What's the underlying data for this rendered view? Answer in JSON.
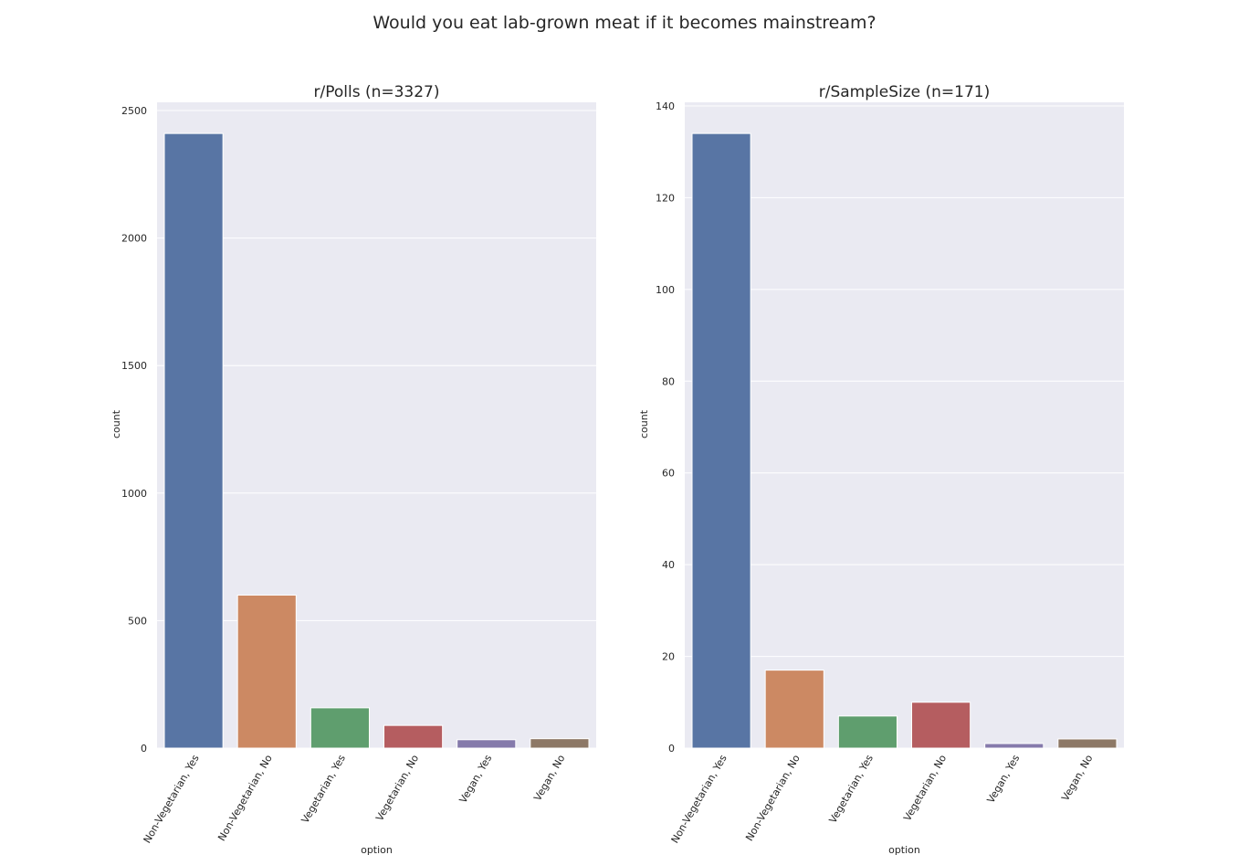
{
  "suptitle": "Would you eat lab-grown meat if it becomes mainstream?",
  "colors": {
    "plot_bg": "#EAEAF2",
    "grid": "#FFFFFF",
    "text": "#262626",
    "bars": [
      "#5875A4",
      "#CC8963",
      "#5F9E6E",
      "#B55D60",
      "#857AAB",
      "#8D7866"
    ]
  },
  "chart_data": [
    {
      "type": "bar",
      "title": "r/Polls (n=3327)",
      "xlabel": "option",
      "ylabel": "count",
      "categories": [
        "Non-Vegetarian, Yes",
        "Non-Vegetarian, No",
        "Vegetarian, Yes",
        "Vegetarian, No",
        "Vegan, Yes",
        "Vegan, No"
      ],
      "values": [
        2410,
        600,
        158,
        89,
        33,
        37
      ],
      "yticks": [
        0,
        500,
        1000,
        1500,
        2000,
        2500
      ],
      "ylim": [
        0,
        2500
      ],
      "grid": true
    },
    {
      "type": "bar",
      "title": "r/SampleSize (n=171)",
      "xlabel": "option",
      "ylabel": "count",
      "categories": [
        "Non-Vegetarian, Yes",
        "Non-Vegetarian, No",
        "Vegetarian, Yes",
        "Vegetarian, No",
        "Vegan, Yes",
        "Vegan, No"
      ],
      "values": [
        134,
        17,
        7,
        10,
        1,
        2
      ],
      "yticks": [
        0,
        20,
        40,
        60,
        80,
        100,
        120,
        140
      ],
      "ylim": [
        0,
        140
      ],
      "grid": true
    }
  ]
}
